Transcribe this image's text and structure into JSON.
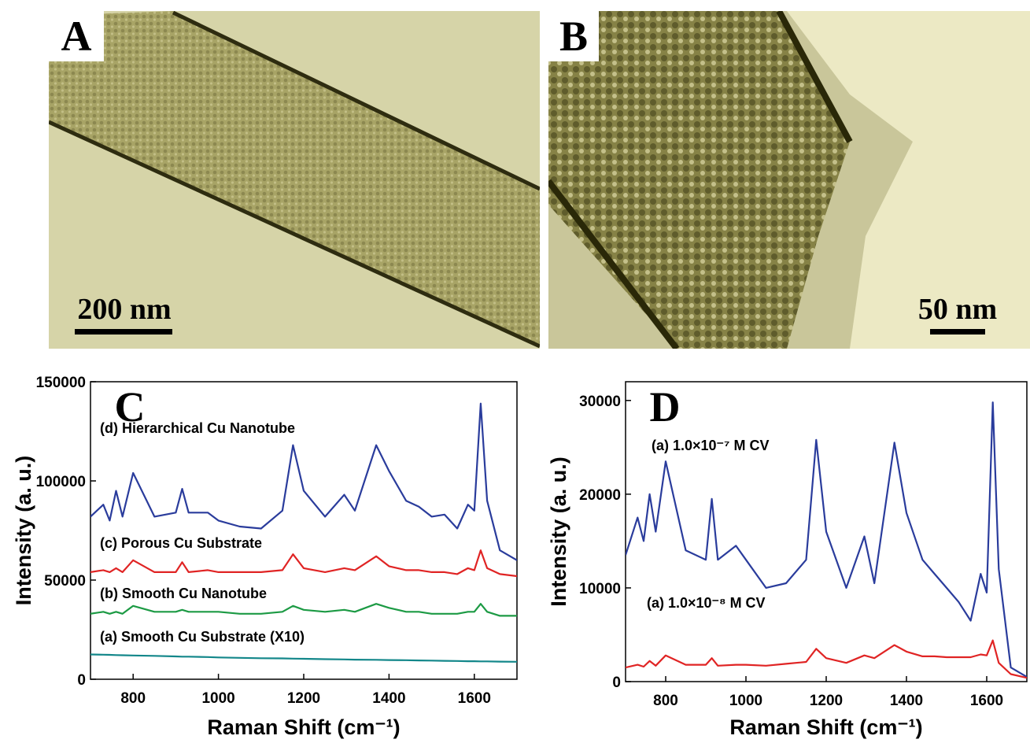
{
  "images": [
    {
      "label": "A",
      "scale_bar": "200 nm"
    },
    {
      "label": "B",
      "scale_bar": "50 nm"
    }
  ],
  "chart_data": [
    {
      "type": "line",
      "panel_label": "C",
      "x_label": "Raman Shift (cm⁻¹)",
      "y_label": "Intensity (a. u.)",
      "x": [
        700,
        730,
        745,
        760,
        775,
        800,
        850,
        900,
        915,
        930,
        975,
        1000,
        1050,
        1100,
        1150,
        1175,
        1200,
        1250,
        1295,
        1320,
        1370,
        1400,
        1440,
        1470,
        1500,
        1530,
        1560,
        1585,
        1600,
        1615,
        1630,
        1660,
        1700
      ],
      "xlim": [
        700,
        1700
      ],
      "xticks": [
        800,
        1000,
        1200,
        1400,
        1600
      ],
      "ylim": [
        0,
        150000
      ],
      "yticks": [
        0,
        50000,
        100000,
        150000
      ],
      "series": [
        {
          "name": "(d) Hierarchical Cu Nanotube",
          "color": "#2a3c9c",
          "values": [
            82000,
            88000,
            80000,
            95000,
            82000,
            104000,
            82000,
            84000,
            96000,
            84000,
            84000,
            80000,
            77000,
            76000,
            85000,
            118000,
            95000,
            82000,
            93000,
            85000,
            118000,
            105000,
            90000,
            87000,
            82000,
            83000,
            76000,
            88000,
            85000,
            139000,
            90000,
            65000,
            60000
          ]
        },
        {
          "name": "(c) Porous Cu Substrate",
          "color": "#e02424",
          "values": [
            54000,
            55000,
            54000,
            56000,
            54000,
            60000,
            54000,
            54000,
            59000,
            54000,
            55000,
            54000,
            54000,
            54000,
            55000,
            63000,
            56000,
            54000,
            56000,
            55000,
            62000,
            57000,
            55000,
            55000,
            54000,
            54000,
            53000,
            56000,
            55000,
            65000,
            56000,
            53000,
            52000
          ]
        },
        {
          "name": "(b) Smooth Cu Nanotube",
          "color": "#1c9a44",
          "values": [
            33000,
            34000,
            33000,
            34000,
            33000,
            37000,
            34000,
            34000,
            35000,
            34000,
            34000,
            34000,
            33000,
            33000,
            34000,
            37000,
            35000,
            34000,
            35000,
            34000,
            38000,
            36000,
            34000,
            34000,
            33000,
            33000,
            33000,
            34000,
            34000,
            38000,
            34000,
            32000,
            32000
          ]
        },
        {
          "name": "(a) Smooth Cu Substrate (X10)",
          "color": "#13878a",
          "values": [
            12500,
            12400,
            12300,
            12200,
            12100,
            12000,
            11800,
            11500,
            11400,
            11400,
            11200,
            11000,
            10800,
            10600,
            10500,
            10400,
            10300,
            10100,
            10000,
            9900,
            9800,
            9700,
            9600,
            9500,
            9400,
            9300,
            9200,
            9100,
            9100,
            9000,
            9000,
            8900,
            8800
          ]
        }
      ]
    },
    {
      "type": "line",
      "panel_label": "D",
      "x_label": "Raman Shift (cm⁻¹)",
      "y_label": "Intensity (a. u.)",
      "x": [
        700,
        730,
        745,
        760,
        775,
        800,
        850,
        900,
        915,
        930,
        975,
        1000,
        1050,
        1100,
        1150,
        1175,
        1200,
        1250,
        1295,
        1320,
        1370,
        1400,
        1440,
        1470,
        1500,
        1530,
        1560,
        1585,
        1600,
        1615,
        1630,
        1660,
        1700
      ],
      "xlim": [
        700,
        1700
      ],
      "xticks": [
        800,
        1000,
        1200,
        1400,
        1600
      ],
      "ylim": [
        0,
        32000
      ],
      "yticks": [
        0,
        10000,
        20000,
        30000
      ],
      "series": [
        {
          "name": "(a) 1.0×10⁻⁷ M  CV",
          "color": "#2a3c9c",
          "values": [
            13500,
            17500,
            15000,
            20000,
            16000,
            23500,
            14000,
            13000,
            19500,
            13000,
            14500,
            13000,
            10000,
            10500,
            13000,
            25800,
            16000,
            10000,
            15500,
            10500,
            25500,
            18000,
            13000,
            11500,
            10000,
            8500,
            6500,
            11500,
            9500,
            29800,
            12000,
            1500,
            500
          ]
        },
        {
          "name": "(a) 1.0×10⁻⁸ M  CV",
          "color": "#e02424",
          "values": [
            1500,
            1800,
            1600,
            2200,
            1700,
            2800,
            1800,
            1800,
            2500,
            1700,
            1800,
            1800,
            1700,
            1900,
            2100,
            3500,
            2500,
            2000,
            2800,
            2500,
            3900,
            3200,
            2700,
            2700,
            2600,
            2600,
            2600,
            2900,
            2800,
            4400,
            2000,
            800,
            400
          ]
        }
      ]
    }
  ]
}
